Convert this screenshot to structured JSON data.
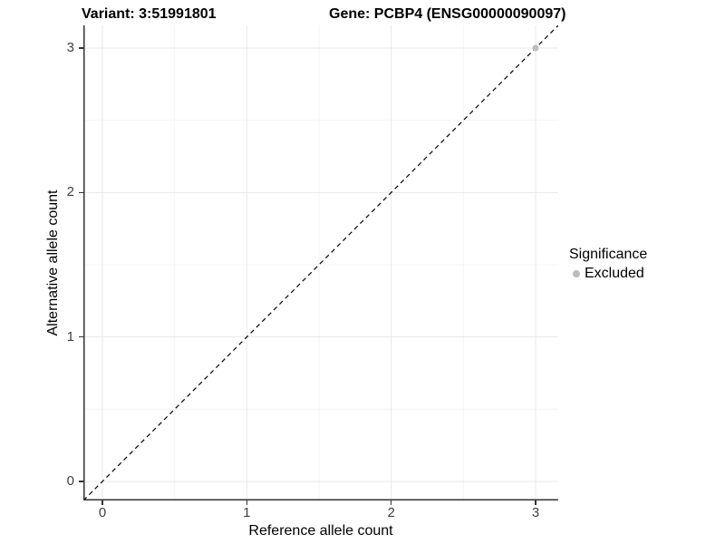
{
  "chart_data": {
    "type": "scatter",
    "title_left": "Variant: 3:51991801",
    "title_right": "Gene: PCBP4 (ENSG00000090097)",
    "xlabel": "Reference allele count",
    "ylabel": "Alternative allele count",
    "xlim": [
      -0.132,
      3.157
    ],
    "ylim": [
      -0.132,
      3.157
    ],
    "x_ticks": [
      0,
      1,
      2,
      3
    ],
    "y_ticks": [
      0,
      1,
      2,
      3
    ],
    "x_minor_ticks": [
      0.5,
      1.5,
      2.5
    ],
    "y_minor_ticks": [
      0.5,
      1.5,
      2.5
    ],
    "grid": "on",
    "identity_line": {
      "equation": "y = x",
      "style": "dashed",
      "color": "#000000"
    },
    "series": [
      {
        "name": "Excluded",
        "color": "#bdbdbd",
        "marker": "circle",
        "points": [
          {
            "x": 3,
            "y": 3
          }
        ]
      }
    ],
    "legend": {
      "title": "Significance",
      "position": "right",
      "items": [
        {
          "label": "Excluded",
          "color": "#bdbdbd"
        }
      ]
    }
  },
  "colors": {
    "grid_major": "#e8e8e8",
    "grid_minor": "#f4f4f4",
    "axis_line": "#333333",
    "tick_label": "#404040",
    "point_fill": "#bdbdbd"
  }
}
